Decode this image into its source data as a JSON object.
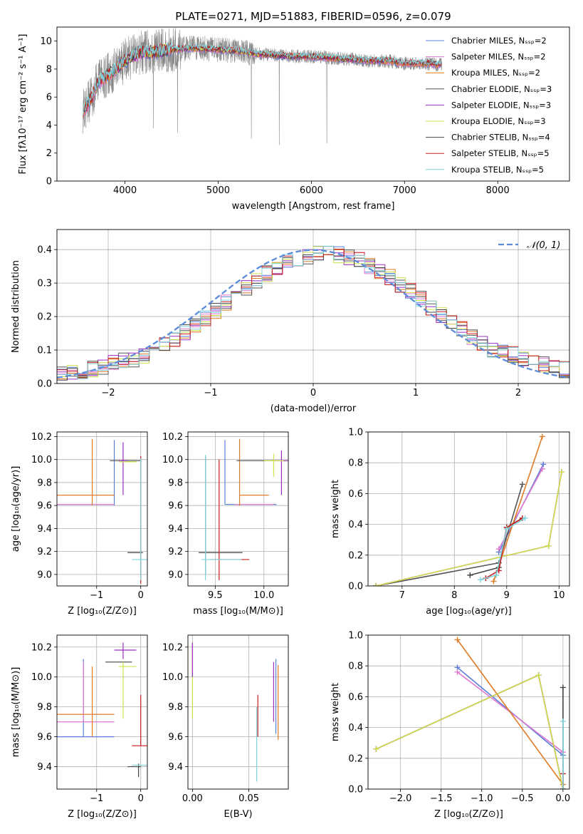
{
  "figure_title": "PLATE=0271, MJD=51883, FIBERID=0596, z=0.079",
  "colors": {
    "chabrier_miles": "#5b7fd9",
    "salpeter_miles": "#e07ad0",
    "kroupa_miles": "#e07b26",
    "chabrier_elodie": "#555555",
    "salpeter_elodie": "#9b2fc0",
    "kroupa_elodie": "#cfe04a",
    "chabrier_stelib": "#444444",
    "salpeter_stelib": "#c81e1e",
    "kroupa_stelib": "#7fd3dc",
    "data": "#888888",
    "gaussian": "#5b8bd9"
  },
  "chart_data": [
    {
      "id": "spectrum",
      "type": "line",
      "title": "PLATE=0271, MJD=51883, FIBERID=0596, z=0.079",
      "xlabel": "wavelength [Angstrom, rest frame]",
      "ylabel": "Flux [fλ10⁻¹⁷ erg cm⁻² s⁻¹ A⁻¹]",
      "xlim": [
        3270,
        8770
      ],
      "ylim": [
        0,
        11
      ],
      "xticks": [
        4000,
        5000,
        6000,
        7000,
        8000
      ],
      "yticks": [
        0,
        2,
        4,
        6,
        8,
        10
      ],
      "grid": false,
      "legend_position": "right",
      "legend": [
        {
          "label": "Chabrier MILES, Nₛₛₚ=2",
          "color": "#5b7fd9"
        },
        {
          "label": "Salpeter MILES, Nₛₛₚ=2",
          "color": "#e07ad0"
        },
        {
          "label": "Kroupa MILES, Nₛₛₚ=2",
          "color": "#e07b26"
        },
        {
          "label": "Chabrier ELODIE, Nₛₛₚ=3",
          "color": "#555555"
        },
        {
          "label": "Salpeter ELODIE, Nₛₛₚ=3",
          "color": "#9b2fc0"
        },
        {
          "label": "Kroupa ELODIE, Nₛₛₚ=3",
          "color": "#cfe04a"
        },
        {
          "label": "Chabrier STELIB, Nₛₛₚ=4",
          "color": "#444444"
        },
        {
          "label": "Salpeter STELIB, Nₛₛₚ=5",
          "color": "#c81e1e"
        },
        {
          "label": "Kroupa STELIB, Nₛₛₚ=5",
          "color": "#7fd3dc"
        }
      ],
      "continuum": {
        "x": [
          3550,
          3650,
          3700,
          3800,
          3900,
          4000,
          4100,
          4200,
          4300,
          4500,
          4700,
          5000,
          5200,
          5400,
          5600,
          5800,
          6000,
          6200,
          6400,
          6600,
          6800,
          7000,
          7200,
          7400
        ],
        "y": [
          5.0,
          6.0,
          7.0,
          7.5,
          8.0,
          8.6,
          9.0,
          9.2,
          9.2,
          9.4,
          9.5,
          9.4,
          9.3,
          9.1,
          9.0,
          8.9,
          8.9,
          8.8,
          8.7,
          8.6,
          8.6,
          8.4,
          8.4,
          8.3
        ]
      }
    },
    {
      "id": "residuals",
      "type": "histogram",
      "xlabel": "(data-model)/error",
      "ylabel": "Normed distribution",
      "xlim": [
        -2.5,
        2.5
      ],
      "ylim": [
        0,
        0.46
      ],
      "xticks": [
        -2,
        -1,
        0,
        1,
        2
      ],
      "yticks": [
        0.0,
        0.1,
        0.2,
        0.3,
        0.4
      ],
      "grid": true,
      "bin_width": 0.1,
      "legend": [
        {
          "label": "𝒩(0, 1)",
          "color": "#5b8bd9"
        }
      ],
      "gaussian": {
        "mean": 0,
        "sigma": 1
      }
    },
    {
      "id": "age_vs_Z",
      "type": "errorbar",
      "xlabel": "Z [log₁₀(Z/Z⊙)]",
      "ylabel": "age  [log₁₀(age/yr)]",
      "xlim": [
        -1.9,
        0.15
      ],
      "ylim": [
        8.9,
        10.24
      ],
      "xticks": [
        -1,
        0
      ],
      "yticks": [
        9.0,
        9.2,
        9.4,
        9.6,
        9.8,
        10.0,
        10.2
      ],
      "grid": true,
      "points": [
        {
          "model": "chabrier_miles",
          "x": -1.3,
          "y": 9.61,
          "xl": -1.9,
          "xh": -0.6,
          "yl": 9.61,
          "yh": 9.61
        },
        {
          "model": "chabrier_miles",
          "x": -0.6,
          "y": 9.99,
          "xl": -0.6,
          "xh": -0.6,
          "yl": 9.6,
          "yh": 10.17
        },
        {
          "model": "salpeter_miles",
          "x": -1.3,
          "y": 9.61,
          "xl": -1.9,
          "xh": -0.6,
          "yl": 9.61,
          "yh": 9.61
        },
        {
          "model": "kroupa_miles",
          "x": -1.1,
          "y": 9.69,
          "xl": -1.9,
          "xh": -0.6,
          "yl": 9.6,
          "yh": 10.18
        },
        {
          "model": "chabrier_elodie",
          "x": -0.3,
          "y": 9.99,
          "xl": -0.7,
          "xh": 0.0,
          "yl": 9.99,
          "yh": 9.99
        },
        {
          "model": "salpeter_elodie",
          "x": -0.4,
          "y": 9.99,
          "xl": -0.5,
          "xh": -0.3,
          "yl": 9.69,
          "yh": 10.15
        },
        {
          "model": "kroupa_elodie",
          "x": -0.3,
          "y": 9.98,
          "xl": -0.5,
          "xh": -0.1,
          "yl": 9.98,
          "yh": 9.98
        },
        {
          "model": "chabrier_stelib",
          "x": -0.05,
          "y": 9.19,
          "xl": -0.3,
          "xh": 0.05,
          "yl": 9.19,
          "yh": 9.19
        },
        {
          "model": "salpeter_stelib",
          "x": 0.0,
          "y": 9.99,
          "xl": 0.0,
          "xh": 0.0,
          "yl": 8.92,
          "yh": 10.03
        },
        {
          "model": "kroupa_stelib",
          "x": 0.0,
          "y": 9.13,
          "xl": -0.2,
          "xh": 0.15,
          "yl": 8.95,
          "yh": 10.01
        }
      ]
    },
    {
      "id": "age_vs_mass",
      "type": "errorbar",
      "xlabel": "mass [log₁₀(M/M⊙)]",
      "xlim": [
        9.22,
        10.25
      ],
      "ylim": [
        8.9,
        10.24
      ],
      "xticks": [
        9.5,
        10.0
      ],
      "yticks": [
        9.0,
        9.2,
        9.4,
        9.6,
        9.8,
        10.0,
        10.2
      ],
      "grid": true,
      "points": [
        {
          "model": "chabrier_miles",
          "x": 9.6,
          "y": 9.61,
          "xl": 9.6,
          "xh": 10.13,
          "yl": 9.61,
          "yh": 10.17
        },
        {
          "model": "salpeter_miles",
          "x": 9.7,
          "y": 9.61,
          "xl": 9.7,
          "xh": 10.1,
          "yl": 9.61,
          "yh": 9.61
        },
        {
          "model": "kroupa_miles",
          "x": 9.75,
          "y": 9.69,
          "xl": 9.75,
          "xh": 10.05,
          "yl": 9.6,
          "yh": 10.18
        },
        {
          "model": "chabrier_elodie",
          "x": 10.05,
          "y": 9.99,
          "xl": 9.72,
          "xh": 10.1,
          "yl": 9.99,
          "yh": 9.99
        },
        {
          "model": "salpeter_elodie",
          "x": 10.18,
          "y": 9.99,
          "xl": 10.1,
          "xh": 10.25,
          "yl": 9.69,
          "yh": 10.08
        },
        {
          "model": "kroupa_elodie",
          "x": 10.1,
          "y": 9.99,
          "xl": 10.0,
          "xh": 10.2,
          "yl": 9.85,
          "yh": 10.05
        },
        {
          "model": "chabrier_stelib",
          "x": 9.4,
          "y": 9.19,
          "xl": 9.33,
          "xh": 9.78,
          "yl": 9.0,
          "yh": 10.03
        },
        {
          "model": "salpeter_stelib",
          "x": 9.54,
          "y": 9.13,
          "xl": 9.45,
          "xh": 9.85,
          "yl": 8.95,
          "yh": 10.0
        },
        {
          "model": "kroupa_stelib",
          "x": 9.4,
          "y": 9.13,
          "xl": 9.36,
          "xh": 9.77,
          "yl": 8.95,
          "yh": 10.04
        }
      ]
    },
    {
      "id": "weight_vs_age",
      "type": "line",
      "xlabel": "age  [log₁₀(age/yr)]",
      "ylabel": "mass weight",
      "xlim": [
        6.35,
        10.2
      ],
      "ylim": [
        0,
        1
      ],
      "xticks": [
        7,
        8,
        9,
        10
      ],
      "yticks": [
        0.0,
        0.2,
        0.4,
        0.6,
        0.8,
        1.0
      ],
      "grid": true,
      "series": [
        {
          "model": "chabrier_miles",
          "x": [
            8.85,
            9.7
          ],
          "y": [
            0.22,
            0.79
          ]
        },
        {
          "model": "salpeter_miles",
          "x": [
            8.85,
            9.68
          ],
          "y": [
            0.24,
            0.76
          ]
        },
        {
          "model": "kroupa_miles",
          "x": [
            8.75,
            9.68
          ],
          "y": [
            0.03,
            0.97
          ]
        },
        {
          "model": "chabrier_elodie",
          "x": [
            6.5,
            8.85,
            9.3
          ],
          "y": [
            0.0,
            0.15,
            0.66
          ]
        },
        {
          "model": "salpeter_elodie",
          "x": [
            6.5,
            9.8,
            10.05
          ],
          "y": [
            0.0,
            0.26,
            0.74
          ]
        },
        {
          "model": "kroupa_elodie",
          "x": [
            6.5,
            9.8,
            10.05
          ],
          "y": [
            0.0,
            0.26,
            0.74
          ]
        },
        {
          "model": "chabrier_stelib",
          "x": [
            8.3,
            8.85,
            9.0,
            9.3
          ],
          "y": [
            0.07,
            0.12,
            0.38,
            0.44
          ]
        },
        {
          "model": "salpeter_stelib",
          "x": [
            8.6,
            8.85,
            9.0,
            9.3
          ],
          "y": [
            0.05,
            0.1,
            0.38,
            0.44
          ]
        },
        {
          "model": "kroupa_stelib",
          "x": [
            8.5,
            8.8,
            9.0,
            9.35
          ],
          "y": [
            0.04,
            0.07,
            0.37,
            0.44
          ]
        }
      ]
    },
    {
      "id": "mass_vs_Z",
      "type": "errorbar",
      "xlabel": "Z [log₁₀(Z/Z⊙)]",
      "ylabel": "mass [log₁₀(M/M⊙)]",
      "xlim": [
        -1.9,
        0.15
      ],
      "ylim": [
        9.25,
        10.28
      ],
      "xticks": [
        -1,
        0
      ],
      "yticks": [
        9.4,
        9.6,
        9.8,
        10.0,
        10.2
      ],
      "grid": true,
      "points": [
        {
          "model": "chabrier_miles",
          "x": -1.3,
          "y": 9.6,
          "xl": -1.9,
          "xh": -0.6,
          "yl": 9.6,
          "yh": 10.12
        },
        {
          "model": "salpeter_miles",
          "x": -1.3,
          "y": 9.7,
          "xl": -1.9,
          "xh": -0.6,
          "yl": 9.7,
          "yh": 10.1
        },
        {
          "model": "kroupa_miles",
          "x": -1.1,
          "y": 9.75,
          "xl": -1.9,
          "xh": -0.6,
          "yl": 9.6,
          "yh": 10.07
        },
        {
          "model": "chabrier_elodie",
          "x": -0.3,
          "y": 10.1,
          "xl": -0.8,
          "xh": -0.2,
          "yl": 10.1,
          "yh": 10.1
        },
        {
          "model": "salpeter_elodie",
          "x": -0.4,
          "y": 10.18,
          "xl": -0.6,
          "xh": -0.1,
          "yl": 10.12,
          "yh": 10.23
        },
        {
          "model": "kroupa_elodie",
          "x": -0.4,
          "y": 10.07,
          "xl": -0.5,
          "xh": -0.1,
          "yl": 9.72,
          "yh": 10.1
        },
        {
          "model": "chabrier_stelib",
          "x": -0.05,
          "y": 9.4,
          "xl": -0.3,
          "xh": 0.0,
          "yl": 9.33,
          "yh": 9.42
        },
        {
          "model": "salpeter_stelib",
          "x": 0.0,
          "y": 9.54,
          "xl": -0.2,
          "xh": 0.15,
          "yl": 9.54,
          "yh": 9.88
        },
        {
          "model": "kroupa_stelib",
          "x": 0.0,
          "y": 9.41,
          "xl": -0.2,
          "xh": 0.15,
          "yl": 9.41,
          "yh": 9.41
        }
      ]
    },
    {
      "id": "mass_vs_ebv",
      "type": "errorbar",
      "xlabel": "E(B-V)",
      "xlim": [
        -0.004,
        0.085
      ],
      "ylim": [
        9.25,
        10.28
      ],
      "xticks": [
        0.0,
        0.05
      ],
      "yticks": [
        9.4,
        9.6,
        9.8,
        10.0,
        10.2
      ],
      "grid": true,
      "points": [
        {
          "model": "kroupa_elodie",
          "x": 0.0,
          "y": 10.0,
          "xl": 0.0,
          "xh": 0.0,
          "yl": 9.72,
          "yh": 10.2
        },
        {
          "model": "salpeter_elodie",
          "x": 0.0,
          "y": 10.15,
          "xl": 0.0,
          "xh": 0.0,
          "yl": 10.0,
          "yh": 10.23
        },
        {
          "model": "salpeter_stelib",
          "x": 0.058,
          "y": 9.75,
          "xl": 0.058,
          "xh": 0.058,
          "yl": 9.6,
          "yh": 9.88
        },
        {
          "model": "kroupa_stelib",
          "x": 0.057,
          "y": 9.55,
          "xl": 0.057,
          "xh": 0.057,
          "yl": 9.3,
          "yh": 9.8
        },
        {
          "model": "salpeter_elodie",
          "x": 0.072,
          "y": 9.9,
          "xl": 0.072,
          "xh": 0.072,
          "yl": 9.7,
          "yh": 10.1
        },
        {
          "model": "chabrier_miles",
          "x": 0.074,
          "y": 9.85,
          "xl": 0.074,
          "xh": 0.074,
          "yl": 9.62,
          "yh": 10.12
        },
        {
          "model": "kroupa_miles",
          "x": 0.076,
          "y": 9.8,
          "xl": 0.076,
          "xh": 0.076,
          "yl": 9.58,
          "yh": 10.08
        }
      ]
    },
    {
      "id": "weight_vs_Z",
      "type": "line",
      "xlabel": "Z [log₁₀(Z/Z⊙)]",
      "ylabel": "mass weight",
      "xlim": [
        -2.4,
        0.08
      ],
      "ylim": [
        0,
        1
      ],
      "xticks": [
        -2.0,
        -1.5,
        -1.0,
        -0.5,
        0.0
      ],
      "yticks": [
        0.0,
        0.2,
        0.4,
        0.6,
        0.8,
        1.0
      ],
      "grid": true,
      "series": [
        {
          "model": "chabrier_miles",
          "x": [
            -1.3,
            0.0
          ],
          "y": [
            0.79,
            0.22
          ]
        },
        {
          "model": "salpeter_miles",
          "x": [
            -1.3,
            0.0
          ],
          "y": [
            0.76,
            0.24
          ]
        },
        {
          "model": "kroupa_miles",
          "x": [
            -1.3,
            0.0
          ],
          "y": [
            0.97,
            0.03
          ]
        },
        {
          "model": "chabrier_elodie",
          "x": [
            -2.3,
            -0.3,
            0.0
          ],
          "y": [
            0.26,
            0.74,
            0.0
          ]
        },
        {
          "model": "salpeter_elodie",
          "x": [
            -2.3,
            -0.3,
            0.0
          ],
          "y": [
            0.26,
            0.74,
            0.0
          ]
        },
        {
          "model": "kroupa_elodie",
          "x": [
            -2.3,
            -0.3,
            0.0
          ],
          "y": [
            0.26,
            0.74,
            0.0
          ]
        },
        {
          "model": "chabrier_stelib",
          "x": [
            0.0,
            0.0
          ],
          "y": [
            0.66,
            0.0
          ]
        },
        {
          "model": "salpeter_stelib",
          "x": [
            0.0,
            0.0
          ],
          "y": [
            0.1,
            0.0
          ]
        },
        {
          "model": "kroupa_stelib",
          "x": [
            0.0,
            0.0
          ],
          "y": [
            0.44,
            0.0
          ]
        }
      ]
    }
  ]
}
